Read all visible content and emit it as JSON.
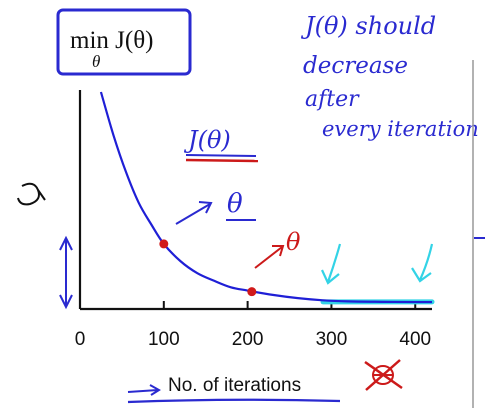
{
  "chart_data": {
    "type": "line",
    "title": "min J(θ)",
    "title_sub": "θ",
    "xlabel": "No. of iterations",
    "ylabel": "",
    "xlim": [
      0,
      420
    ],
    "ylim": [
      0,
      1
    ],
    "x_ticks": [
      "0",
      "100",
      "200",
      "300",
      "400"
    ],
    "x_tick_values": [
      0,
      100,
      200,
      300,
      400
    ],
    "grid": false,
    "series": [
      {
        "color": "#1f1fd6",
        "x": [
          25,
          40,
          55,
          70,
          85,
          100,
          120,
          140,
          160,
          180,
          200,
          230,
          260,
          290,
          320,
          360,
          400,
          420
        ],
        "y": [
          1.0,
          0.8,
          0.63,
          0.49,
          0.39,
          0.3,
          0.22,
          0.165,
          0.13,
          0.1,
          0.085,
          0.065,
          0.05,
          0.04,
          0.035,
          0.033,
          0.032,
          0.032
        ]
      }
    ],
    "markers": [
      {
        "x": 100,
        "y": 0.3,
        "color": "#d11a1a"
      },
      {
        "x": 205,
        "y": 0.08,
        "color": "#d11a1a"
      }
    ],
    "highlight": {
      "x_start": 290,
      "x_end": 420,
      "y": 0.033,
      "color": "#33d3e6"
    }
  },
  "annotations": {
    "note_line1": "J(θ) should",
    "note_line2": "decrease",
    "note_line3": "after",
    "note_line4": "every iteration",
    "curve_label": "J(θ)",
    "theta_label_1": "θ",
    "theta_label_2": "θ"
  },
  "colors": {
    "ink_blue": "#2a2ad0",
    "ink_red": "#cc1a1a",
    "cyan": "#33d3e6"
  }
}
